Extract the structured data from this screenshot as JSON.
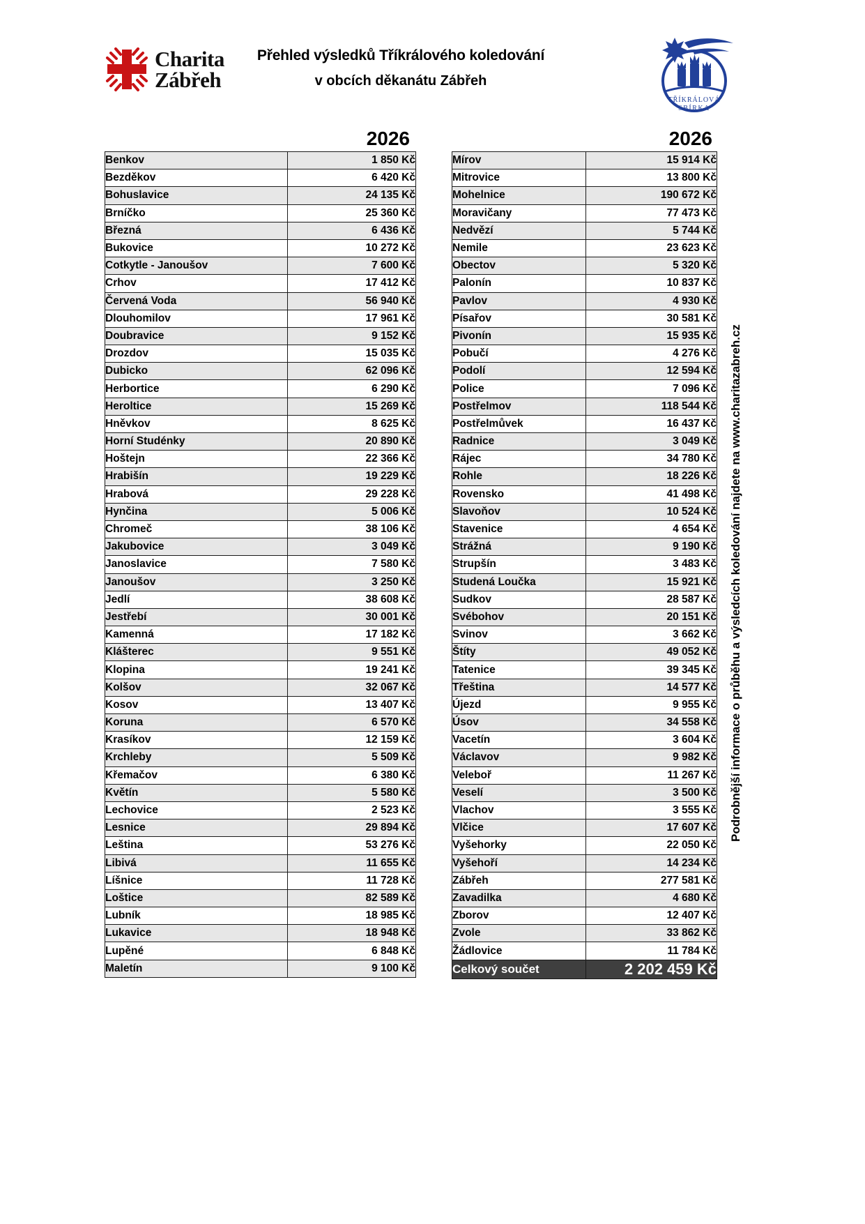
{
  "header": {
    "logo_left": {
      "line1": "Charita",
      "line2": "Zábřeh"
    },
    "title_line1": "Přehled výsledků Tříkrálového koledování",
    "title_line2": "v obcích děkanátu Zábřeh",
    "logo_right": {
      "line1": "TŘÍKRÁLOVÁ",
      "line2": "SBÍRKA"
    }
  },
  "year_left": "2026",
  "year_right": "2026",
  "left_table": {
    "rows": [
      {
        "name": "Benkov",
        "value": "1 850 Kč"
      },
      {
        "name": "Bezděkov",
        "value": "6 420 Kč"
      },
      {
        "name": "Bohuslavice",
        "value": "24 135 Kč"
      },
      {
        "name": "Brníčko",
        "value": "25 360 Kč"
      },
      {
        "name": "Březná",
        "value": "6 436 Kč"
      },
      {
        "name": "Bukovice",
        "value": "10 272 Kč"
      },
      {
        "name": "Cotkytle - Janoušov",
        "value": "7 600 Kč"
      },
      {
        "name": "Crhov",
        "value": "17 412 Kč"
      },
      {
        "name": "Červená Voda",
        "value": "56 940 Kč"
      },
      {
        "name": "Dlouhomilov",
        "value": "17 961 Kč"
      },
      {
        "name": "Doubravice",
        "value": "9 152 Kč"
      },
      {
        "name": "Drozdov",
        "value": "15 035 Kč"
      },
      {
        "name": "Dubicko",
        "value": "62 096 Kč"
      },
      {
        "name": "Herbortice",
        "value": "6 290 Kč"
      },
      {
        "name": "Heroltice",
        "value": "15 269 Kč"
      },
      {
        "name": "Hněvkov",
        "value": "8 625 Kč"
      },
      {
        "name": "Horní Studénky",
        "value": "20 890 Kč"
      },
      {
        "name": "Hoštejn",
        "value": "22 366 Kč"
      },
      {
        "name": "Hrabišín",
        "value": "19 229 Kč"
      },
      {
        "name": "Hrabová",
        "value": "29 228 Kč"
      },
      {
        "name": "Hynčina",
        "value": "5 006 Kč"
      },
      {
        "name": "Chromeč",
        "value": "38 106 Kč"
      },
      {
        "name": "Jakubovice",
        "value": "3 049 Kč"
      },
      {
        "name": "Janoslavice",
        "value": "7 580 Kč"
      },
      {
        "name": "Janoušov",
        "value": "3 250 Kč"
      },
      {
        "name": "Jedlí",
        "value": "38 608 Kč"
      },
      {
        "name": "Jestřebí",
        "value": "30 001 Kč"
      },
      {
        "name": "Kamenná",
        "value": "17 182 Kč"
      },
      {
        "name": "Klášterec",
        "value": "9 551 Kč"
      },
      {
        "name": "Klopina",
        "value": "19 241 Kč"
      },
      {
        "name": "Kolšov",
        "value": "32 067 Kč"
      },
      {
        "name": "Kosov",
        "value": "13 407 Kč"
      },
      {
        "name": "Koruna",
        "value": "6 570 Kč"
      },
      {
        "name": "Krasíkov",
        "value": "12 159 Kč"
      },
      {
        "name": "Krchleby",
        "value": "5 509 Kč"
      },
      {
        "name": "Křemačov",
        "value": "6 380 Kč"
      },
      {
        "name": "Květín",
        "value": "5 580 Kč"
      },
      {
        "name": "Lechovice",
        "value": "2 523 Kč"
      },
      {
        "name": "Lesnice",
        "value": "29 894 Kč"
      },
      {
        "name": "Leština",
        "value": "53 276 Kč"
      },
      {
        "name": "Libivá",
        "value": "11 655 Kč"
      },
      {
        "name": "Líšnice",
        "value": "11 728 Kč"
      },
      {
        "name": "Loštice",
        "value": "82 589 Kč"
      },
      {
        "name": "Lubník",
        "value": "18 985 Kč"
      },
      {
        "name": "Lukavice",
        "value": "18 948 Kč"
      },
      {
        "name": "Lupěné",
        "value": "6 848 Kč"
      },
      {
        "name": "Maletín",
        "value": "9 100 Kč"
      }
    ]
  },
  "right_table": {
    "rows": [
      {
        "name": "Mírov",
        "value": "15 914 Kč"
      },
      {
        "name": "Mitrovice",
        "value": "13 800 Kč"
      },
      {
        "name": "Mohelnice",
        "value": "190 672 Kč"
      },
      {
        "name": "Moravičany",
        "value": "77 473 Kč"
      },
      {
        "name": "Nedvězí",
        "value": "5 744 Kč"
      },
      {
        "name": "Nemile",
        "value": "23 623 Kč"
      },
      {
        "name": "Obectov",
        "value": "5 320 Kč"
      },
      {
        "name": "Palonín",
        "value": "10 837 Kč"
      },
      {
        "name": "Pavlov",
        "value": "4 930 Kč"
      },
      {
        "name": "Písařov",
        "value": "30 581 Kč"
      },
      {
        "name": "Pivonín",
        "value": "15 935 Kč"
      },
      {
        "name": "Pobučí",
        "value": "4 276 Kč"
      },
      {
        "name": "Podolí",
        "value": "12 594 Kč"
      },
      {
        "name": "Police",
        "value": "7 096 Kč"
      },
      {
        "name": "Postřelmov",
        "value": "118 544 Kč"
      },
      {
        "name": "Postřelmůvek",
        "value": "16 437 Kč"
      },
      {
        "name": "Radnice",
        "value": "3 049 Kč"
      },
      {
        "name": "Rájec",
        "value": "34 780 Kč"
      },
      {
        "name": "Rohle",
        "value": "18 226 Kč"
      },
      {
        "name": "Rovensko",
        "value": "41 498 Kč"
      },
      {
        "name": "Slavoňov",
        "value": "10 524 Kč"
      },
      {
        "name": "Stavenice",
        "value": "4 654 Kč"
      },
      {
        "name": "Strážná",
        "value": "9 190 Kč"
      },
      {
        "name": "Strupšín",
        "value": "3 483 Kč"
      },
      {
        "name": "Studená Loučka",
        "value": "15 921 Kč"
      },
      {
        "name": "Sudkov",
        "value": "28 587 Kč"
      },
      {
        "name": "Svébohov",
        "value": "20 151 Kč"
      },
      {
        "name": "Svinov",
        "value": "3 662 Kč"
      },
      {
        "name": "Štíty",
        "value": "49 052 Kč"
      },
      {
        "name": "Tatenice",
        "value": "39 345 Kč"
      },
      {
        "name": "Třeština",
        "value": "14 577 Kč"
      },
      {
        "name": "Újezd",
        "value": "9 955 Kč"
      },
      {
        "name": "Úsov",
        "value": "34 558 Kč"
      },
      {
        "name": "Vacetín",
        "value": "3 604 Kč"
      },
      {
        "name": "Václavov",
        "value": "9 982 Kč"
      },
      {
        "name": "Veleboř",
        "value": "11 267 Kč"
      },
      {
        "name": "Veselí",
        "value": "3 500 Kč"
      },
      {
        "name": "Vlachov",
        "value": "3 555 Kč"
      },
      {
        "name": "Vlčice",
        "value": "17 607 Kč"
      },
      {
        "name": "Vyšehorky",
        "value": "22 050 Kč"
      },
      {
        "name": "Vyšehoří",
        "value": "14 234 Kč"
      },
      {
        "name": "Zábřeh",
        "value": "277 581 Kč"
      },
      {
        "name": "Zavadilka",
        "value": "4 680 Kč"
      },
      {
        "name": "Zborov",
        "value": "12 407 Kč"
      },
      {
        "name": "Zvole",
        "value": "33 862 Kč"
      },
      {
        "name": "Žádlovice",
        "value": "11 784 Kč"
      }
    ],
    "total": {
      "label": "Celkový součet",
      "value": "2 202 459 Kč"
    }
  },
  "side_note": "Podrobnější informace o průběhu a výsledcích koledování najdete na www.charitazabreh.cz",
  "colors": {
    "charita_red": "#C91315",
    "sbirka_blue": "#21409A",
    "stripe_gray": "#E7E7E7",
    "total_row_bg": "#3F3F3F"
  }
}
